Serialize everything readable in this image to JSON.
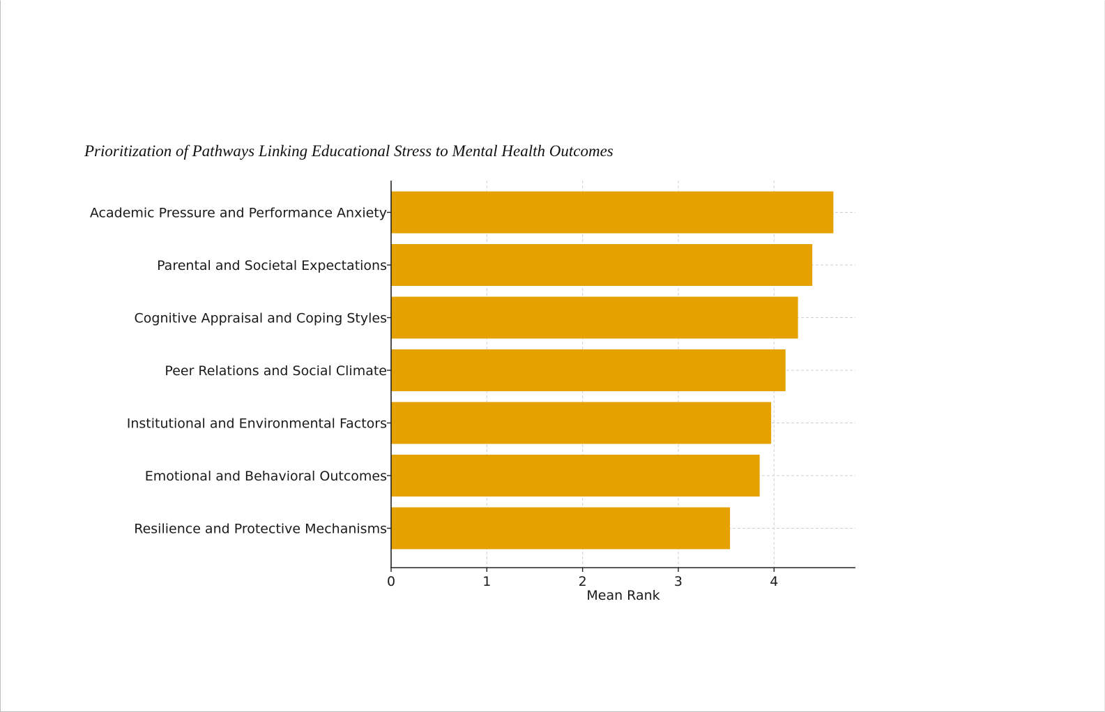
{
  "chart_data": {
    "type": "bar",
    "orientation": "horizontal",
    "title": "Prioritization of Pathways Linking Educational Stress to Mental Health Outcomes",
    "xlabel": "Mean Rank",
    "ylabel": "",
    "categories": [
      "Academic Pressure and Performance Anxiety",
      "Parental and Societal Expectations",
      "Cognitive Appraisal and Coping Styles",
      "Peer Relations and Social Climate",
      "Institutional and Environmental Factors",
      "Emotional and Behavioral Outcomes",
      "Resilience and Protective Mechanisms"
    ],
    "values": [
      4.62,
      4.4,
      4.25,
      4.12,
      3.97,
      3.85,
      3.54
    ],
    "xlim": [
      0,
      4.85
    ],
    "xticks": [
      "0",
      "1",
      "2",
      "3",
      "4"
    ],
    "grid": true,
    "bar_color": "#E5A100"
  }
}
